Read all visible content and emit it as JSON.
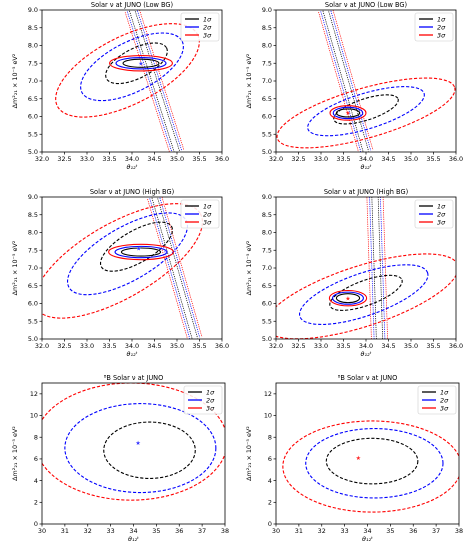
{
  "panels": [
    {
      "title": "Solar ν at JUNO (Low BG)",
      "xlabel": "θ₁₂ᵗ",
      "ylabel": "Δm²₂₁ × 10⁻⁵ eV²",
      "legend": [
        "1σ",
        "2σ",
        "3σ"
      ]
    },
    {
      "title": "Solar ν at JUNO (Low BG)",
      "xlabel": "θ₁₂ᵗ",
      "ylabel": "Δm²₂₁ × 10⁻⁵ eV²",
      "legend": [
        "1σ",
        "2σ",
        "3σ"
      ]
    },
    {
      "title": "Solar ν at JUNO (High BG)",
      "xlabel": "θ₁₂ᵗ",
      "ylabel": "Δm²₂₁ × 10⁻⁵ eV²",
      "legend": [
        "1σ",
        "2σ",
        "3σ"
      ]
    },
    {
      "title": "Solar ν at JUNO (High BG)",
      "xlabel": "θ₁₂ᵗ",
      "ylabel": "Δm²₂₁ × 10⁻⁵ eV²",
      "legend": [
        "1σ",
        "2σ",
        "3σ"
      ]
    },
    {
      "title": "⁸B Solar ν at JUNO",
      "xlabel": "θ₁₂ᵗ",
      "ylabel": "Δm²₂₁ × 10⁻⁵ eV²",
      "legend": [
        "1σ",
        "2σ",
        "3σ"
      ]
    },
    {
      "title": "⁸B Solar ν at JUNO",
      "xlabel": "θ₁₂ᵗ",
      "ylabel": "Δm²₂₁ × 10⁻⁵ eV²",
      "legend": [
        "1σ",
        "2σ",
        "3σ"
      ]
    }
  ],
  "colors": {
    "1σ": "#000000",
    "2σ": "#0000ff",
    "3σ": "#ff0000",
    "blue_dot": "#3333ff",
    "red_dot": "#ff2222"
  },
  "chart_data": [
    {
      "type": "contour",
      "title": "Solar ν at JUNO (Low BG)",
      "xlim": [
        32.0,
        36.0
      ],
      "ylim": [
        5.0,
        9.0
      ],
      "xticks": [
        32.0,
        32.5,
        33.0,
        33.5,
        34.0,
        34.5,
        35.0,
        35.5,
        36.0
      ],
      "yticks": [
        5.0,
        5.5,
        6.0,
        6.5,
        7.0,
        7.5,
        8.0,
        8.5,
        9.0
      ],
      "best_fit": [
        34.2,
        7.5
      ],
      "best_fit_color": "#3333ff",
      "reactor_best_fit": [
        34.2,
        7.5
      ],
      "contours": [
        {
          "level": "1σ",
          "center": [
            34.1,
            7.5
          ],
          "rx": 0.75,
          "ry": 0.42,
          "angle_deg": 27
        },
        {
          "level": "2σ",
          "center": [
            34.0,
            7.4
          ],
          "rx": 1.25,
          "ry": 0.7,
          "angle_deg": 27
        },
        {
          "level": "3σ",
          "center": [
            33.9,
            7.3
          ],
          "rx": 1.75,
          "ry": 0.95,
          "angle_deg": 27
        }
      ],
      "bands": {
        "line_top": [
          34.0,
          9.0
        ],
        "line_bottom": [
          35.0,
          5.0
        ],
        "half_widths": [
          0.06,
          0.11,
          0.16
        ]
      },
      "reactor_contours": [
        {
          "level": "1σ",
          "rx": 0.5,
          "ry": 0.07,
          "angle_deg": 66
        },
        {
          "level": "2σ",
          "rx": 0.72,
          "ry": 0.11,
          "angle_deg": 66
        },
        {
          "level": "3σ",
          "rx": 0.92,
          "ry": 0.16,
          "angle_deg": 66
        }
      ]
    },
    {
      "type": "contour",
      "title": "Solar ν at JUNO (Low BG)",
      "xlim": [
        32.0,
        36.0
      ],
      "ylim": [
        5.0,
        9.0
      ],
      "xticks": [
        32.0,
        32.5,
        33.0,
        33.5,
        34.0,
        34.5,
        35.0,
        35.5,
        36.0
      ],
      "yticks": [
        5.0,
        5.5,
        6.0,
        6.5,
        7.0,
        7.5,
        8.0,
        8.5,
        9.0
      ],
      "best_fit": [
        33.6,
        6.1
      ],
      "best_fit_color": "#ff2222",
      "reactor_best_fit": [
        33.6,
        6.1
      ],
      "contours": [
        {
          "level": "1σ",
          "center": [
            34.0,
            6.2
          ],
          "rx": 0.75,
          "ry": 0.3,
          "angle_deg": 18
        },
        {
          "level": "2σ",
          "center": [
            34.0,
            6.15
          ],
          "rx": 1.35,
          "ry": 0.5,
          "angle_deg": 17
        },
        {
          "level": "3σ",
          "center": [
            34.0,
            6.1
          ],
          "rx": 2.05,
          "ry": 0.7,
          "angle_deg": 16
        }
      ],
      "bands": {
        "line_top": [
          33.1,
          9.0
        ],
        "line_bottom": [
          34.0,
          5.0
        ],
        "half_widths": [
          0.06,
          0.11,
          0.16
        ]
      },
      "reactor_contours": [
        {
          "level": "1σ",
          "rx": 0.3,
          "ry": 0.07,
          "angle_deg": 62
        },
        {
          "level": "2σ",
          "rx": 0.4,
          "ry": 0.11,
          "angle_deg": 62
        },
        {
          "level": "3σ",
          "rx": 0.5,
          "ry": 0.15,
          "angle_deg": 62
        }
      ]
    },
    {
      "type": "contour",
      "title": "Solar ν at JUNO (High BG)",
      "xlim": [
        32.0,
        36.0
      ],
      "ylim": [
        5.0,
        9.0
      ],
      "xticks": [
        32.0,
        32.5,
        33.0,
        33.5,
        34.0,
        34.5,
        35.0,
        35.5,
        36.0
      ],
      "yticks": [
        5.0,
        5.5,
        6.0,
        6.5,
        7.0,
        7.5,
        8.0,
        8.5,
        9.0
      ],
      "best_fit": [
        34.15,
        7.55
      ],
      "best_fit_color": "#3333ff",
      "reactor_best_fit": [
        34.2,
        7.45
      ],
      "contours": [
        {
          "level": "1σ",
          "center": [
            34.1,
            7.6
          ],
          "rx": 0.9,
          "ry": 0.45,
          "angle_deg": 30
        },
        {
          "level": "2σ",
          "center": [
            33.9,
            7.4
          ],
          "rx": 1.5,
          "ry": 0.75,
          "angle_deg": 30
        },
        {
          "level": "3σ",
          "center": [
            33.7,
            7.2
          ],
          "rx": 2.1,
          "ry": 1.05,
          "angle_deg": 30
        }
      ],
      "bands": {
        "line_top": [
          34.5,
          9.0
        ],
        "line_bottom": [
          35.4,
          5.0
        ],
        "half_widths": [
          0.06,
          0.11,
          0.16
        ]
      },
      "reactor_contours": [
        {
          "level": "1σ",
          "rx": 0.55,
          "ry": 0.07,
          "angle_deg": 66
        },
        {
          "level": "2σ",
          "rx": 0.75,
          "ry": 0.11,
          "angle_deg": 66
        },
        {
          "level": "3σ",
          "rx": 0.95,
          "ry": 0.16,
          "angle_deg": 66
        }
      ]
    },
    {
      "type": "contour",
      "title": "Solar ν at JUNO (High BG)",
      "xlim": [
        32.0,
        36.0
      ],
      "ylim": [
        5.0,
        9.0
      ],
      "xticks": [
        32.0,
        32.5,
        33.0,
        33.5,
        34.0,
        34.5,
        35.0,
        35.5,
        36.0
      ],
      "yticks": [
        5.0,
        5.5,
        6.0,
        6.5,
        7.0,
        7.5,
        8.0,
        8.5,
        9.0
      ],
      "best_fit": [
        33.6,
        6.15
      ],
      "best_fit_color": "#ff2222",
      "reactor_best_fit": [
        33.6,
        6.15
      ],
      "contours": [
        {
          "level": "1σ",
          "center": [
            34.0,
            6.3
          ],
          "rx": 0.85,
          "ry": 0.35,
          "angle_deg": 20
        },
        {
          "level": "2σ",
          "center": [
            33.95,
            6.25
          ],
          "rx": 1.5,
          "ry": 0.6,
          "angle_deg": 19
        },
        {
          "level": "3σ",
          "center": [
            33.9,
            6.2
          ],
          "rx": 2.25,
          "ry": 0.85,
          "angle_deg": 18
        }
      ],
      "bands": {
        "line_top": [
          34.2,
          9.0
        ],
        "line_bottom": [
          34.3,
          5.0
        ],
        "half_widths": [
          0.07,
          0.12,
          0.18
        ]
      },
      "band_angle_line": {
        "top": [
          34.3,
          9.0
        ],
        "bottom": [
          34.3,
          5.0
        ]
      },
      "reactor_contours": [
        {
          "level": "1σ",
          "rx": 0.3,
          "ry": 0.08,
          "angle_deg": 62
        },
        {
          "level": "2σ",
          "rx": 0.42,
          "ry": 0.12,
          "angle_deg": 62
        },
        {
          "level": "3σ",
          "rx": 0.52,
          "ry": 0.16,
          "angle_deg": 62
        }
      ]
    },
    {
      "type": "contour",
      "title": "⁸B Solar ν at JUNO",
      "xlim": [
        30,
        38
      ],
      "ylim": [
        0,
        13
      ],
      "xticks": [
        30,
        31,
        32,
        33,
        34,
        35,
        36,
        37,
        38
      ],
      "yticks": [
        0,
        2,
        4,
        6,
        8,
        10,
        12
      ],
      "best_fit": [
        34.2,
        7.5
      ],
      "best_fit_color": "#3333ff",
      "contours": [
        {
          "level": "1σ",
          "center": [
            34.7,
            6.8
          ],
          "rx": 2.0,
          "ry": 2.6,
          "angle_deg": 0
        },
        {
          "level": "2σ",
          "center": [
            34.3,
            7.0
          ],
          "rx": 3.3,
          "ry": 4.1,
          "angle_deg": 0
        },
        {
          "level": "3σ",
          "center": [
            33.9,
            7.6
          ],
          "rx": 4.2,
          "ry": 5.4,
          "angle_deg": 0
        }
      ]
    },
    {
      "type": "contour",
      "title": "⁸B Solar ν at JUNO",
      "xlim": [
        30,
        38
      ],
      "ylim": [
        0,
        13
      ],
      "xticks": [
        30,
        31,
        32,
        33,
        34,
        35,
        36,
        37,
        38
      ],
      "yticks": [
        0,
        2,
        4,
        6,
        8,
        10,
        12
      ],
      "best_fit": [
        33.6,
        6.1
      ],
      "best_fit_color": "#ff2222",
      "contours": [
        {
          "level": "1σ",
          "center": [
            34.2,
            5.8
          ],
          "rx": 2.0,
          "ry": 2.1,
          "angle_deg": 0
        },
        {
          "level": "2σ",
          "center": [
            34.3,
            5.6
          ],
          "rx": 3.0,
          "ry": 3.2,
          "angle_deg": 0
        },
        {
          "level": "3σ",
          "center": [
            34.2,
            5.3
          ],
          "rx": 3.9,
          "ry": 4.2,
          "angle_deg": 0
        }
      ]
    }
  ]
}
